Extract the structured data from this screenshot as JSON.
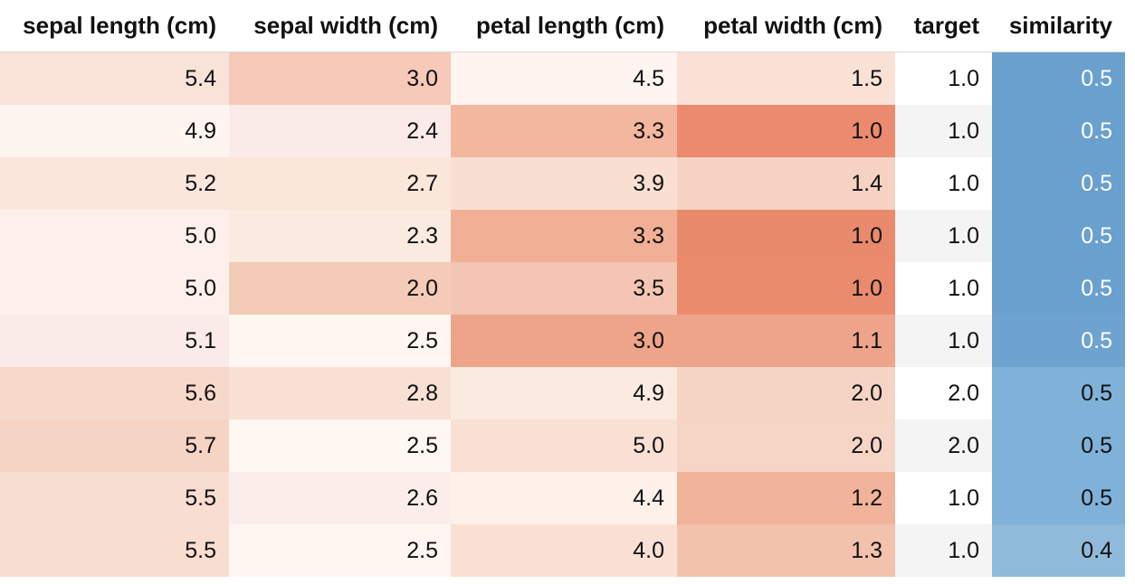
{
  "table": {
    "columns": [
      "sepal length (cm)",
      "sepal width (cm)",
      "petal length (cm)",
      "petal width (cm)",
      "target",
      "similarity"
    ],
    "rows": [
      [
        "5.4",
        "3.0",
        "4.5",
        "1.5",
        "1.0",
        "0.5"
      ],
      [
        "4.9",
        "2.4",
        "3.3",
        "1.0",
        "1.0",
        "0.5"
      ],
      [
        "5.2",
        "2.7",
        "3.9",
        "1.4",
        "1.0",
        "0.5"
      ],
      [
        "5.0",
        "2.3",
        "3.3",
        "1.0",
        "1.0",
        "0.5"
      ],
      [
        "5.0",
        "2.0",
        "3.5",
        "1.0",
        "1.0",
        "0.5"
      ],
      [
        "5.1",
        "2.5",
        "3.0",
        "1.1",
        "1.0",
        "0.5"
      ],
      [
        "5.6",
        "2.8",
        "4.9",
        "2.0",
        "2.0",
        "0.5"
      ],
      [
        "5.7",
        "2.5",
        "5.0",
        "2.0",
        "2.0",
        "0.5"
      ],
      [
        "5.5",
        "2.6",
        "4.4",
        "1.2",
        "1.0",
        "0.5"
      ],
      [
        "5.5",
        "2.5",
        "4.0",
        "1.3",
        "1.0",
        "0.4"
      ]
    ],
    "cell_colors": [
      [
        "#f9e2d8",
        "#f6c9b8",
        "#fff4ef",
        "#f9e1d6",
        "#ffffff",
        "#6aa0cd"
      ],
      [
        "#fff5f0",
        "#fbebe8",
        "#f3b69f",
        "#eb8a6e",
        "#f4f4f4",
        "#6aa0cd"
      ],
      [
        "#fbe6dc",
        "#fbe6da",
        "#f9dfd2",
        "#f6d2c2",
        "#ffffff",
        "#6aa0cd"
      ],
      [
        "#fdf0ea",
        "#faeae0",
        "#f1b095",
        "#e98a6d",
        "#f4f4f4",
        "#6aa0cd"
      ],
      [
        "#fdf0ea",
        "#f4cbb7",
        "#f3c5b2",
        "#ea8b6e",
        "#ffffff",
        "#6aa0cd"
      ],
      [
        "#fbebe8",
        "#fff6f1",
        "#eda489",
        "#eea48b",
        "#f4f4f4",
        "#6ea3cf"
      ],
      [
        "#f7d9cc",
        "#f9e0d5",
        "#faeae0",
        "#f5d4c4",
        "#ffffff",
        "#80b1d8"
      ],
      [
        "#f6d4c4",
        "#fff7f2",
        "#f9e0d5",
        "#f6d5c6",
        "#f4f4f4",
        "#80b1d8"
      ],
      [
        "#f8ddd1",
        "#fbeeea",
        "#fdf1ea",
        "#f1b399",
        "#ffffff",
        "#80b1d8"
      ],
      [
        "#f8ddd1",
        "#fff6f1",
        "#f9e0d5",
        "#f3c2ad",
        "#f4f4f4",
        "#8fbada"
      ]
    ],
    "light_text_columns": [
      5
    ],
    "light_text_rows": [
      0,
      1,
      2,
      3,
      4,
      5
    ]
  }
}
